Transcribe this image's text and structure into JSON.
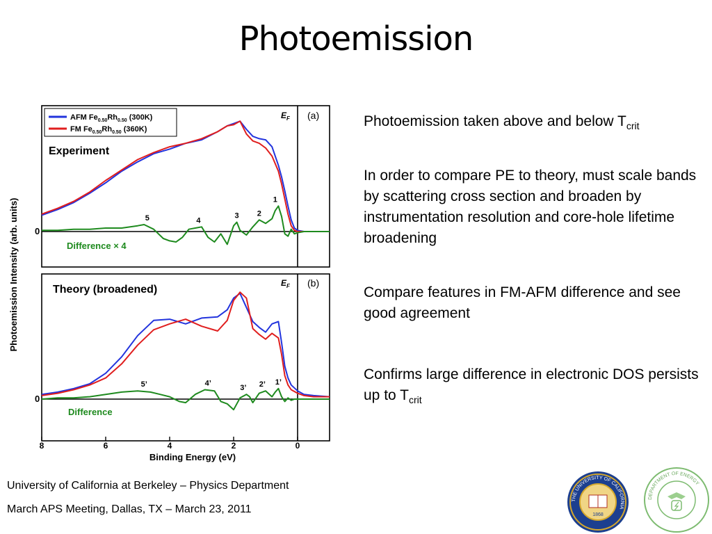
{
  "title": "Photoemission",
  "bullets": [
    {
      "text": "Photoemission taken above and below T",
      "sub": "crit"
    },
    {
      "text": "In order to compare PE to theory, must scale bands by scattering cross section and broaden by instrumentation resolution and core-hole lifetime broadening"
    },
    {
      "text": "Compare features in FM-AFM difference and see good agreement"
    },
    {
      "text": "Confirms large difference in electronic DOS persists up to T",
      "sub": "crit"
    }
  ],
  "footer": {
    "line1": "University of California at Berkeley – Physics Department",
    "line2": "March APS Meeting, Dallas, TX – March 23, 2011"
  },
  "logos": {
    "uc": {
      "ring_text": "THE UNIVERSITY OF CALIFORNIA",
      "year": "1868",
      "motto": "LET THERE BE LIGHT"
    },
    "doe": {
      "ring_text": "DEPARTMENT OF ENERGY",
      "ring_text2": "UNITED STATES OF AMERICA"
    }
  },
  "chart_data": [
    {
      "type": "line",
      "panel_label": "(a)",
      "ef_label": "EF",
      "annotation": "Experiment",
      "ylabel": "Photoemission Intensity (arb. units)",
      "xlabel": "Binding Energy (eV)",
      "x_reversed": true,
      "xlim": [
        8,
        -1
      ],
      "zero_label": "0",
      "legend": {
        "position": "top-left"
      },
      "series": [
        {
          "name": "AFM Fe0.50Rh0.50 (300K)",
          "color": "#2233dd",
          "x": [
            8,
            7.5,
            7,
            6.5,
            6,
            5.5,
            5,
            4.5,
            4,
            3.5,
            3,
            2.5,
            2.2,
            2,
            1.8,
            1.6,
            1.4,
            1.2,
            1.0,
            0.8,
            0.6,
            0.5,
            0.4,
            0.3,
            0.2,
            0.1,
            0,
            -0.2,
            -1
          ],
          "y": [
            0.14,
            0.19,
            0.25,
            0.33,
            0.42,
            0.52,
            0.6,
            0.67,
            0.71,
            0.76,
            0.79,
            0.86,
            0.91,
            0.93,
            0.95,
            0.88,
            0.82,
            0.8,
            0.79,
            0.73,
            0.57,
            0.47,
            0.35,
            0.22,
            0.1,
            0.03,
            0.01,
            0,
            0
          ]
        },
        {
          "name": "FM Fe0.50Rh0.50 (360K)",
          "color": "#e01e1e",
          "x": [
            8,
            7.5,
            7,
            6.5,
            6,
            5.5,
            5,
            4.5,
            4,
            3.5,
            3,
            2.5,
            2.2,
            2,
            1.8,
            1.6,
            1.4,
            1.2,
            1.0,
            0.8,
            0.6,
            0.5,
            0.4,
            0.3,
            0.2,
            0.1,
            0,
            -0.2,
            -1
          ],
          "y": [
            0.15,
            0.2,
            0.26,
            0.34,
            0.44,
            0.53,
            0.62,
            0.68,
            0.73,
            0.76,
            0.8,
            0.86,
            0.91,
            0.92,
            0.95,
            0.84,
            0.78,
            0.76,
            0.72,
            0.65,
            0.52,
            0.41,
            0.28,
            0.15,
            0.05,
            0.01,
            0,
            0,
            0
          ]
        },
        {
          "name": "Difference × 4",
          "color": "#1e8a1e",
          "x": [
            8,
            7.5,
            7,
            6.5,
            6,
            5.5,
            5,
            4.8,
            4.5,
            4.2,
            4,
            3.8,
            3.6,
            3.4,
            3.2,
            3.0,
            2.8,
            2.6,
            2.4,
            2.2,
            2.0,
            1.9,
            1.8,
            1.6,
            1.4,
            1.2,
            1.0,
            0.8,
            0.7,
            0.6,
            0.5,
            0.4,
            0.3,
            0.2,
            0.1,
            0,
            -0.2,
            -1
          ],
          "y": [
            0.01,
            0.01,
            0.02,
            0.02,
            0.03,
            0.03,
            0.05,
            0.06,
            0.02,
            -0.06,
            -0.08,
            -0.09,
            -0.05,
            0.02,
            0.03,
            0.04,
            -0.05,
            -0.09,
            -0.02,
            -0.11,
            0.05,
            0.08,
            0.01,
            -0.03,
            0.04,
            0.1,
            0.07,
            0.11,
            0.18,
            0.22,
            0.13,
            -0.02,
            -0.04,
            0.02,
            -0.02,
            -0.01,
            0,
            0
          ]
        }
      ],
      "peak_labels": [
        {
          "label": "1",
          "x": 0.7,
          "y": 0.22
        },
        {
          "label": "2",
          "x": 1.2,
          "y": 0.1
        },
        {
          "label": "3",
          "x": 1.9,
          "y": 0.08
        },
        {
          "label": "4",
          "x": 3.1,
          "y": 0.04
        },
        {
          "label": "5",
          "x": 4.7,
          "y": 0.06
        }
      ]
    },
    {
      "type": "line",
      "panel_label": "(b)",
      "ef_label": "EF",
      "annotation": "Theory (broadened)",
      "xlabel": "Binding Energy (eV)",
      "x_reversed": true,
      "xlim": [
        8,
        -1
      ],
      "zero_label": "0",
      "x_ticks": [
        "8",
        "6",
        "4",
        "2",
        "0"
      ],
      "series": [
        {
          "name": "AFM",
          "color": "#2233dd",
          "x": [
            8,
            7.5,
            7,
            6.5,
            6,
            5.5,
            5,
            4.5,
            4,
            3.5,
            3,
            2.5,
            2.2,
            2.0,
            1.8,
            1.6,
            1.4,
            1.2,
            1.0,
            0.8,
            0.6,
            0.5,
            0.4,
            0.3,
            0.2,
            0,
            -0.2,
            -0.5,
            -1
          ],
          "y": [
            0.04,
            0.06,
            0.09,
            0.13,
            0.22,
            0.36,
            0.54,
            0.67,
            0.68,
            0.64,
            0.69,
            0.7,
            0.76,
            0.86,
            0.9,
            0.78,
            0.66,
            0.61,
            0.57,
            0.64,
            0.66,
            0.48,
            0.28,
            0.18,
            0.12,
            0.07,
            0.04,
            0.03,
            0.02
          ]
        },
        {
          "name": "FM",
          "color": "#e01e1e",
          "x": [
            8,
            7.5,
            7,
            6.5,
            6,
            5.5,
            5,
            4.5,
            4,
            3.5,
            3,
            2.5,
            2.2,
            2.0,
            1.8,
            1.6,
            1.4,
            1.2,
            1.0,
            0.8,
            0.6,
            0.5,
            0.4,
            0.3,
            0.2,
            0,
            -0.2,
            -0.5,
            -1
          ],
          "y": [
            0.03,
            0.05,
            0.08,
            0.12,
            0.18,
            0.3,
            0.46,
            0.59,
            0.64,
            0.68,
            0.62,
            0.58,
            0.67,
            0.84,
            0.91,
            0.86,
            0.6,
            0.55,
            0.51,
            0.56,
            0.52,
            0.38,
            0.2,
            0.12,
            0.08,
            0.05,
            0.03,
            0.02,
            0.02
          ]
        },
        {
          "name": "Difference",
          "color": "#1e8a1e",
          "x": [
            8,
            7.5,
            7,
            6.5,
            6,
            5.5,
            5,
            4.6,
            4.3,
            4,
            3.7,
            3.5,
            3.2,
            2.9,
            2.6,
            2.4,
            2.2,
            2.0,
            1.8,
            1.6,
            1.5,
            1.4,
            1.2,
            1.0,
            0.8,
            0.7,
            0.6,
            0.5,
            0.4,
            0.3,
            0.2,
            0.1,
            0,
            -0.2,
            -1
          ],
          "y": [
            0,
            0.01,
            0.01,
            0.02,
            0.04,
            0.06,
            0.07,
            0.06,
            0.04,
            0.02,
            -0.02,
            -0.03,
            0.04,
            0.08,
            0.07,
            -0.02,
            -0.04,
            -0.09,
            0.01,
            0.04,
            0.02,
            -0.03,
            0.05,
            0.07,
            0.02,
            0.06,
            0.09,
            0.02,
            -0.02,
            0.01,
            -0.01,
            0,
            0,
            0,
            0
          ]
        }
      ],
      "peak_labels": [
        {
          "label": "1’",
          "x": 0.6,
          "y": 0.09
        },
        {
          "label": "2’",
          "x": 1.1,
          "y": 0.07
        },
        {
          "label": "3’",
          "x": 1.7,
          "y": 0.04
        },
        {
          "label": "4’",
          "x": 2.8,
          "y": 0.08
        },
        {
          "label": "5’",
          "x": 4.8,
          "y": 0.07
        }
      ]
    }
  ]
}
